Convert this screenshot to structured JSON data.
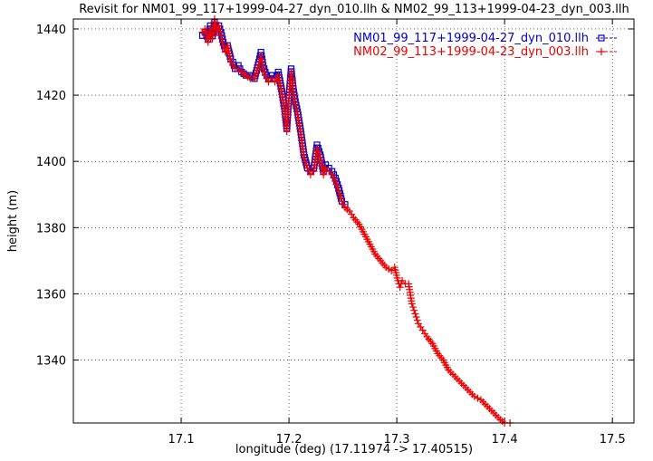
{
  "chart_data": {
    "type": "line",
    "title": "Revisit for NM01_99_117+1999-04-27_dyn_010.llh & NM02_99_113+1999-04-23_dyn_003.llh",
    "xlabel": "longitude (deg) (17.11974 -> 17.40515)",
    "ylabel": "height (m)",
    "xlim": [
      17.0,
      17.52
    ],
    "ylim": [
      1321,
      1443
    ],
    "xticks": [
      17.1,
      17.2,
      17.3,
      17.4,
      17.5
    ],
    "xtick_labels": [
      "17.1",
      "17.2",
      "17.3",
      "17.4",
      "17.5"
    ],
    "yticks": [
      1340,
      1360,
      1380,
      1400,
      1420,
      1440
    ],
    "ytick_labels": [
      "1340",
      "1360",
      "1380",
      "1400",
      "1420",
      "1440"
    ],
    "grid": true,
    "legend_position": "top-right",
    "series": [
      {
        "name": "NM01_99_117+1999-04-27_dyn_010.llh",
        "legend_text": "NM01_99_117+1999-04-27_dyn_010.llh",
        "color": "#0000cc",
        "marker": "square",
        "x": [
          17.1197,
          17.122,
          17.125,
          17.127,
          17.129,
          17.131,
          17.133,
          17.135,
          17.137,
          17.139,
          17.141,
          17.143,
          17.146,
          17.148,
          17.15,
          17.153,
          17.156,
          17.16,
          17.164,
          17.168,
          17.172,
          17.174,
          17.176,
          17.178,
          17.181,
          17.184,
          17.187,
          17.19,
          17.193,
          17.196,
          17.198,
          17.2,
          17.202,
          17.204,
          17.206,
          17.208,
          17.211,
          17.214,
          17.217,
          17.22,
          17.223,
          17.226,
          17.229,
          17.232,
          17.234,
          17.237,
          17.24,
          17.243,
          17.246,
          17.249,
          17.252
        ],
        "y": [
          1438,
          1439,
          1437,
          1441,
          1438,
          1442,
          1440,
          1441,
          1439,
          1436,
          1434,
          1435,
          1431,
          1430,
          1428,
          1429,
          1427,
          1426,
          1426,
          1425,
          1430,
          1433,
          1429,
          1427,
          1425,
          1426,
          1425,
          1427,
          1422,
          1416,
          1410,
          1420,
          1428,
          1422,
          1418,
          1415,
          1409,
          1402,
          1398,
          1397,
          1398,
          1405,
          1402,
          1397,
          1399,
          1398,
          1397,
          1395,
          1392,
          1388,
          1387
        ]
      },
      {
        "name": "NM02_99_113+1999-04-23_dyn_003.llh",
        "legend_text": "NM02_99_113+1999-04-23_dyn_003.llh",
        "color": "#ee0000",
        "marker": "plus",
        "x": [
          17.1197,
          17.122,
          17.125,
          17.127,
          17.129,
          17.131,
          17.133,
          17.135,
          17.137,
          17.139,
          17.141,
          17.143,
          17.146,
          17.148,
          17.15,
          17.153,
          17.156,
          17.16,
          17.164,
          17.168,
          17.172,
          17.174,
          17.176,
          17.178,
          17.181,
          17.184,
          17.187,
          17.19,
          17.193,
          17.196,
          17.198,
          17.2,
          17.202,
          17.204,
          17.206,
          17.208,
          17.211,
          17.214,
          17.217,
          17.22,
          17.223,
          17.226,
          17.229,
          17.232,
          17.234,
          17.237,
          17.24,
          17.243,
          17.246,
          17.249,
          17.252,
          17.256,
          17.26,
          17.265,
          17.27,
          17.275,
          17.28,
          17.285,
          17.29,
          17.295,
          17.298,
          17.301,
          17.303,
          17.305,
          17.308,
          17.311,
          17.314,
          17.317,
          17.32,
          17.324,
          17.328,
          17.333,
          17.338,
          17.343,
          17.348,
          17.354,
          17.36,
          17.366,
          17.372,
          17.378,
          17.384,
          17.39,
          17.396,
          17.4,
          17.405
        ],
        "y": [
          1439,
          1440,
          1436,
          1440,
          1437,
          1443,
          1439,
          1441,
          1438,
          1435,
          1433,
          1435,
          1430,
          1429,
          1428,
          1428,
          1427,
          1426,
          1425,
          1425,
          1429,
          1432,
          1428,
          1426,
          1424,
          1425,
          1424,
          1426,
          1421,
          1415,
          1409,
          1419,
          1427,
          1421,
          1417,
          1414,
          1408,
          1401,
          1398,
          1396,
          1397,
          1404,
          1401,
          1396,
          1398,
          1397,
          1396,
          1394,
          1391,
          1388,
          1386,
          1385,
          1383,
          1381,
          1378,
          1375,
          1372,
          1370,
          1368,
          1367,
          1368,
          1364,
          1362,
          1364,
          1363,
          1363,
          1357,
          1354,
          1351,
          1349,
          1347,
          1345,
          1342,
          1340,
          1337,
          1335,
          1333,
          1331,
          1329,
          1328,
          1326,
          1324,
          1322,
          1321,
          1321
        ]
      }
    ]
  }
}
